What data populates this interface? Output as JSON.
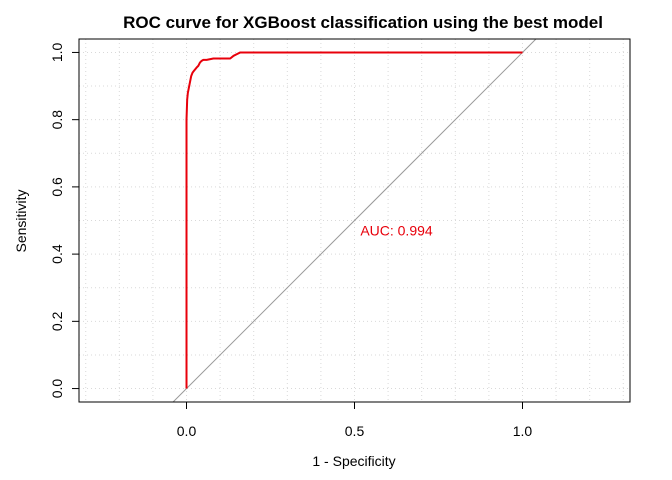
{
  "chart_data": {
    "type": "line",
    "title": "ROC curve for XGBoost classification using the best model",
    "xlabel": "1 - Specificity",
    "ylabel": "Sensitivity",
    "xlim": [
      -0.32,
      1.32
    ],
    "ylim": [
      -0.04,
      1.04
    ],
    "x_ticks": [
      0.0,
      0.5,
      1.0
    ],
    "y_ticks": [
      0.0,
      0.2,
      0.4,
      0.6,
      0.8,
      1.0
    ],
    "x_tick_labels": [
      "0.0",
      "0.5",
      "1.0"
    ],
    "y_tick_labels": [
      "0.0",
      "0.2",
      "0.4",
      "0.6",
      "0.8",
      "1.0"
    ],
    "grid": true,
    "curve_color": "#e8000b",
    "diagonal_color": "#999999",
    "annotation": {
      "text": "AUC: 0.994",
      "x": 0.5,
      "y": 0.47,
      "color": "#e8000b"
    },
    "series": [
      {
        "x": [
          0.0,
          0.0,
          0.0,
          0.002,
          0.004,
          0.006,
          0.01,
          0.014,
          0.018,
          0.022,
          0.026,
          0.03,
          0.035,
          0.04,
          0.045,
          0.05,
          0.06,
          0.08,
          0.1,
          0.13,
          0.14,
          0.15,
          0.16,
          0.2,
          0.4,
          0.6,
          0.8,
          1.0
        ],
        "y": [
          0.0,
          0.6,
          0.8,
          0.86,
          0.88,
          0.89,
          0.91,
          0.93,
          0.94,
          0.945,
          0.95,
          0.955,
          0.96,
          0.97,
          0.975,
          0.978,
          0.978,
          0.982,
          0.982,
          0.982,
          0.99,
          0.995,
          1.0,
          1.0,
          1.0,
          1.0,
          1.0,
          1.0
        ]
      }
    ],
    "diagonal": {
      "x": [
        -0.04,
        1.04
      ],
      "y": [
        -0.04,
        1.04
      ]
    }
  }
}
